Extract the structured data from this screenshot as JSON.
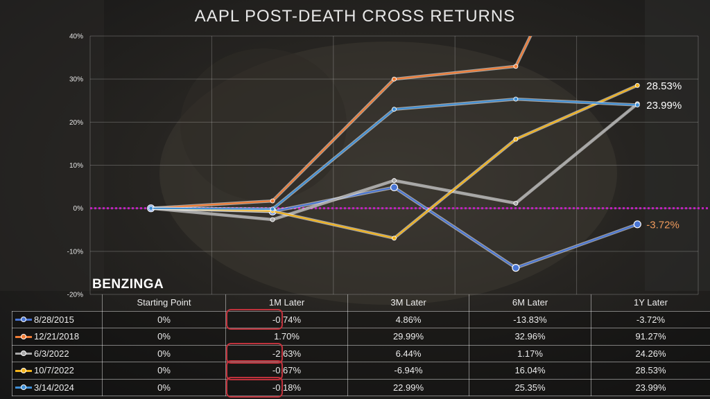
{
  "chart_data": {
    "type": "line",
    "title": "AAPL POST-DEATH CROSS RETURNS",
    "brand": "BENZINGA",
    "categories": [
      "Starting Point",
      "1M Later",
      "3M Later",
      "6M Later",
      "1Y Later"
    ],
    "ylim": [
      -20,
      40
    ],
    "yticks": [
      {
        "value": 40,
        "label": "40%"
      },
      {
        "value": 30,
        "label": "30%"
      },
      {
        "value": 20,
        "label": "20%"
      },
      {
        "value": 10,
        "label": "10%"
      },
      {
        "value": 0,
        "label": "0%"
      },
      {
        "value": -10,
        "label": "-10%"
      },
      {
        "value": -20,
        "label": "-20%"
      }
    ],
    "zero_line_color": "#c020c0",
    "series": [
      {
        "name": "8/28/2015",
        "color": "#4a76d4",
        "values": [
          0,
          -0.74,
          4.86,
          -13.83,
          -3.72
        ],
        "labels": [
          "0%",
          "-0.74%",
          "4.86%",
          "-13.83%",
          "-3.72%"
        ]
      },
      {
        "name": "12/21/2018",
        "color": "#ef7c36",
        "values": [
          0,
          1.7,
          29.99,
          32.96,
          91.27
        ],
        "labels": [
          "0%",
          "1.70%",
          "29.99%",
          "32.96%",
          "91.27%"
        ]
      },
      {
        "name": "6/3/2022",
        "color": "#a9a9a9",
        "values": [
          0,
          -2.63,
          6.44,
          1.17,
          24.26
        ],
        "labels": [
          "0%",
          "-2.63%",
          "6.44%",
          "1.17%",
          "24.26%"
        ]
      },
      {
        "name": "10/7/2022",
        "color": "#f2b31c",
        "values": [
          0,
          -0.67,
          -6.94,
          16.04,
          28.53
        ],
        "labels": [
          "0%",
          "-0.67%",
          "-6.94%",
          "16.04%",
          "28.53%"
        ]
      },
      {
        "name": "3/14/2024",
        "color": "#3f8fd6",
        "values": [
          0,
          -0.18,
          22.99,
          25.35,
          23.99
        ],
        "labels": [
          "0%",
          "-0.18%",
          "22.99%",
          "25.35%",
          "23.99%"
        ]
      }
    ],
    "end_labels": [
      {
        "series": "10/7/2022",
        "text": "28.53%",
        "color": "#ffffff"
      },
      {
        "series": "3/14/2024",
        "text": "23.99%",
        "color": "#ffffff"
      },
      {
        "series": "8/28/2015",
        "text": "-3.72%",
        "color": "#ef9a5c"
      }
    ],
    "highlighted_cells": [
      {
        "series": "8/28/2015",
        "column": "1M Later"
      },
      {
        "series": "6/3/2022",
        "column": "1M Later"
      },
      {
        "series": "10/7/2022",
        "column": "1M Later"
      },
      {
        "series": "3/14/2024",
        "column": "1M Later"
      }
    ],
    "highlight_color": "#c0323c"
  }
}
